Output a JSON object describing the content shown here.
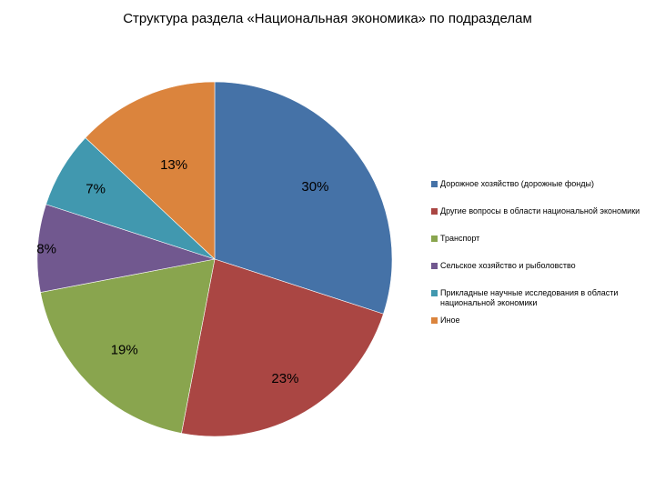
{
  "chart_data": {
    "type": "pie",
    "title": "Структура раздела «Национальная экономика» по подразделам",
    "series": [
      {
        "name": "Дорожное хозяйство (дорожные фонды)",
        "value": 30,
        "label": "30%",
        "color": "#4572A7"
      },
      {
        "name": "Другие вопросы в области национальной экономики",
        "value": 23,
        "label": "23%",
        "color": "#AA4643"
      },
      {
        "name": "Транспорт",
        "value": 19,
        "label": "19%",
        "color": "#89A54E"
      },
      {
        "name": "Сельское хозяйство и рыболовство",
        "value": 8,
        "label": "8%",
        "color": "#71588F"
      },
      {
        "name": "Прикладные научные исследования в области национальной экономики",
        "value": 7,
        "label": "7%",
        "color": "#4198AF"
      },
      {
        "name": "Иное",
        "value": 13,
        "label": "13%",
        "color": "#DB843D"
      }
    ],
    "start_angle_deg": 0,
    "direction": "clockwise",
    "legend_position": "right"
  }
}
